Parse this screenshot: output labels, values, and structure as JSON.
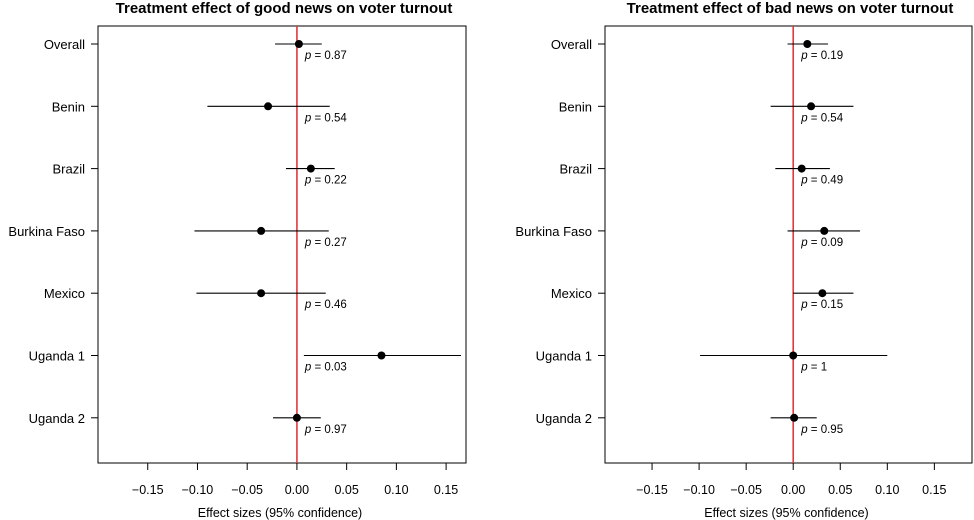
{
  "chart_data": [
    {
      "type": "forest",
      "title": "Treatment effect of good news on voter turnout",
      "xlabel": "Effect sizes (95% confidence)",
      "xlim": [
        -0.2,
        0.17
      ],
      "x_ticks": [
        -0.15,
        -0.1,
        -0.05,
        0.0,
        0.05,
        0.1,
        0.15
      ],
      "x_tick_labels": [
        "−0.15",
        "−0.10",
        "−0.05",
        "0.00",
        "0.05",
        "0.10",
        "0.15"
      ],
      "reference_line": 0,
      "reference_color": "#e0393e",
      "p_prefix": "p",
      "categories": [
        "Overall",
        "Benin",
        "Brazil",
        "Burkina Faso",
        "Mexico",
        "Uganda 1",
        "Uganda 2"
      ],
      "estimates": [
        0.002,
        -0.029,
        0.014,
        -0.036,
        -0.036,
        0.085,
        0.0
      ],
      "ci_low": [
        -0.022,
        -0.09,
        -0.011,
        -0.103,
        -0.101,
        0.007,
        -0.024
      ],
      "ci_high": [
        0.025,
        0.033,
        0.038,
        0.032,
        0.029,
        0.165,
        0.024
      ],
      "p_values": [
        "0.87",
        "0.54",
        "0.22",
        "0.27",
        "0.46",
        "0.03",
        "0.97"
      ],
      "grid": false
    },
    {
      "type": "forest",
      "title": "Treatment effect of bad news on voter turnout",
      "xlabel": "Effect sizes (95% confidence)",
      "xlim": [
        -0.2,
        0.19
      ],
      "x_ticks": [
        -0.15,
        -0.1,
        -0.05,
        0.0,
        0.05,
        0.1,
        0.15
      ],
      "x_tick_labels": [
        "−0.15",
        "−0.10",
        "−0.05",
        "0.00",
        "0.05",
        "0.10",
        "0.15"
      ],
      "reference_line": 0,
      "reference_color": "#e0393e",
      "p_prefix": "p",
      "categories": [
        "Overall",
        "Benin",
        "Brazil",
        "Burkina Faso",
        "Mexico",
        "Uganda 1",
        "Uganda 2"
      ],
      "estimates": [
        0.015,
        0.019,
        0.009,
        0.033,
        0.031,
        0.0,
        0.001
      ],
      "ci_low": [
        -0.006,
        -0.024,
        -0.019,
        -0.006,
        0.0,
        -0.099,
        -0.024
      ],
      "ci_high": [
        0.037,
        0.064,
        0.039,
        0.071,
        0.064,
        0.1,
        0.025
      ],
      "p_values": [
        "0.19",
        "0.54",
        "0.49",
        "0.09",
        "0.15",
        "1",
        "0.95"
      ],
      "grid": false
    }
  ]
}
